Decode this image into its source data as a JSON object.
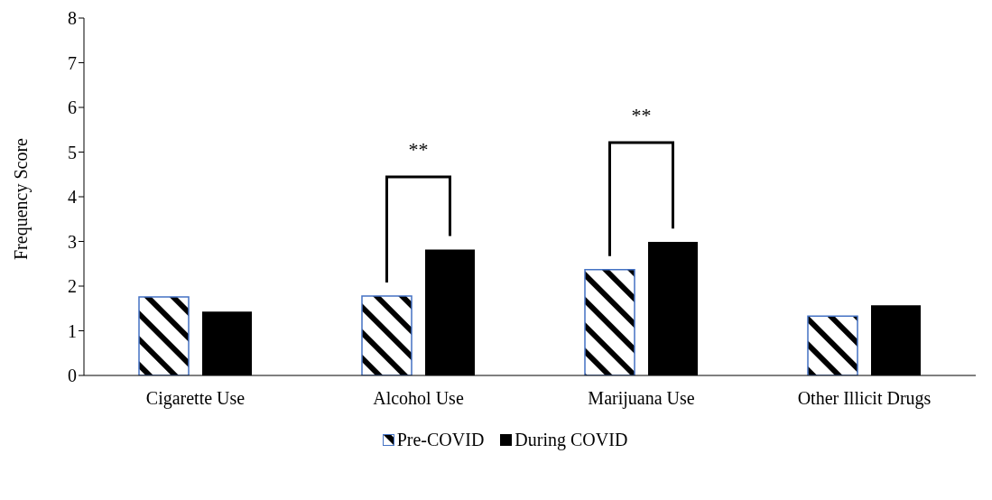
{
  "chart_data": {
    "type": "bar",
    "ylabel": "Frequency Score",
    "categories": [
      "Cigarette Use",
      "Alcohol Use",
      "Marijuana Use",
      "Other Illicit Drugs"
    ],
    "series": [
      {
        "name": "Pre-COVID",
        "color": "#4472c4",
        "values": [
          1.76,
          1.78,
          2.37,
          1.33
        ]
      },
      {
        "name": "During COVID",
        "color": "#000000",
        "values": [
          1.43,
          2.82,
          2.99,
          1.57
        ]
      }
    ],
    "ylim": [
      0,
      8
    ],
    "yticks": [
      0,
      1,
      2,
      3,
      4,
      5,
      6,
      7,
      8
    ],
    "grid": false,
    "legend": "bottom",
    "annotations": [
      "**",
      "**"
    ]
  }
}
